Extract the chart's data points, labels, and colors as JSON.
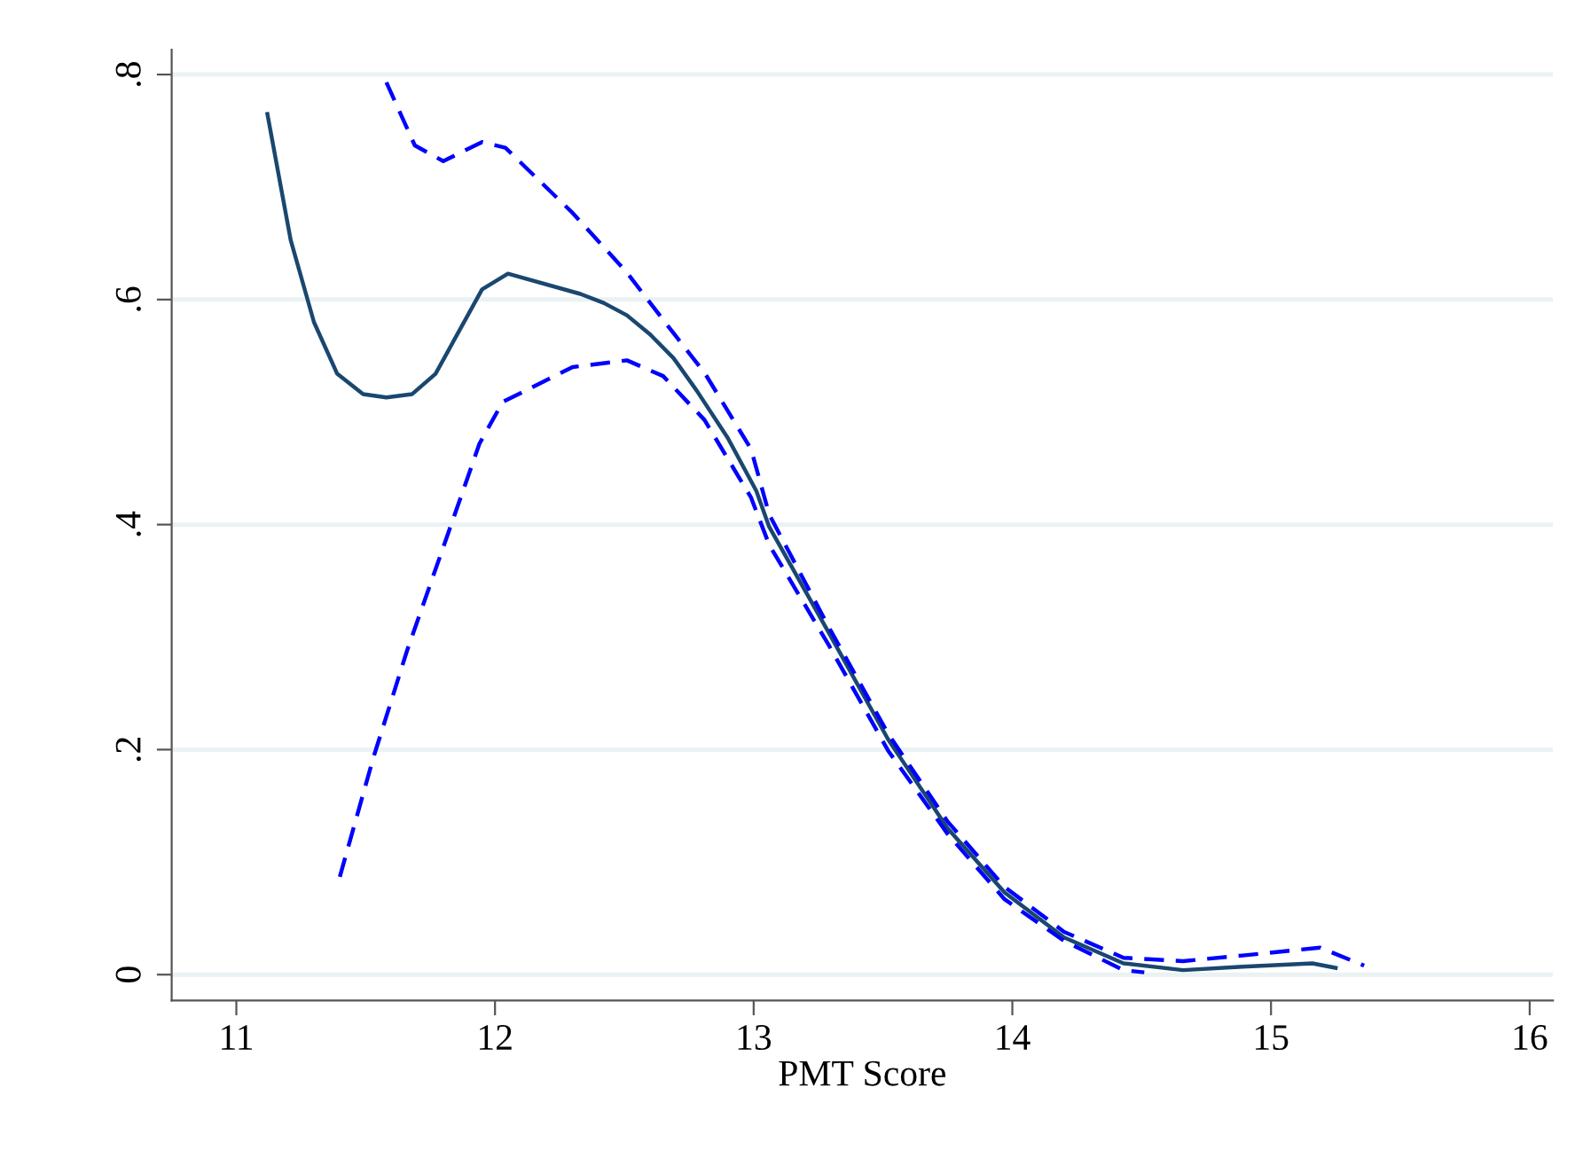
{
  "chart_data": {
    "type": "line",
    "xlabel": "PMT Score",
    "xlim": [
      10.75,
      16.09
    ],
    "ylim": [
      -0.023,
      0.822
    ],
    "xticks": [
      11,
      12,
      13,
      14,
      15,
      16
    ],
    "yticks": [
      0,
      {
        "value": 0.2,
        "label": ".2"
      },
      {
        "value": 0.4,
        "label": ".4"
      },
      {
        "value": 0.6,
        "label": ".6"
      },
      {
        "value": 0.8,
        "label": ".8"
      }
    ],
    "grid": "y",
    "marker": "none",
    "series": [
      {
        "color": "#1a476f",
        "line_style": "solid",
        "x": [
          11.12,
          11.21,
          11.3,
          11.39,
          11.49,
          11.58,
          11.68,
          11.77,
          11.95,
          12.05,
          12.33,
          12.42,
          12.51,
          12.6,
          12.69,
          12.78,
          12.9,
          13.01,
          13.06,
          13.29,
          13.52,
          13.75,
          13.97,
          14.2,
          14.43,
          14.66,
          14.89,
          15.16,
          15.25
        ],
        "values": [
          0.765,
          0.653,
          0.58,
          0.534,
          0.516,
          0.513,
          0.516,
          0.534,
          0.609,
          0.623,
          0.605,
          0.597,
          0.586,
          0.569,
          0.548,
          0.519,
          0.477,
          0.43,
          0.398,
          0.304,
          0.209,
          0.13,
          0.073,
          0.033,
          0.01,
          0.004,
          0.007,
          0.01,
          0.006
        ]
      },
      {
        "color": "#0000ff",
        "line_style": "dashed",
        "x": [
          11.58,
          11.69,
          11.8,
          11.95,
          12.04,
          12.3,
          12.51,
          12.65,
          12.81,
          12.99,
          13.06,
          13.29,
          13.52,
          13.75,
          13.97,
          14.2,
          14.43,
          14.66,
          14.89,
          15.19,
          15.36
        ],
        "values": [
          0.793,
          0.737,
          0.723,
          0.74,
          0.735,
          0.677,
          0.624,
          0.582,
          0.535,
          0.467,
          0.409,
          0.309,
          0.214,
          0.136,
          0.078,
          0.038,
          0.015,
          0.012,
          0.017,
          0.024,
          0.008
        ]
      },
      {
        "color": "#0000ff",
        "line_style": "dashed",
        "x": [
          11.4,
          11.53,
          11.66,
          11.82,
          11.94,
          12.03,
          12.3,
          12.51,
          12.65,
          12.81,
          12.99,
          13.06,
          13.29,
          13.52,
          13.75,
          13.97,
          14.2,
          14.43,
          14.51
        ],
        "values": [
          0.087,
          0.193,
          0.288,
          0.393,
          0.472,
          0.509,
          0.54,
          0.546,
          0.532,
          0.493,
          0.424,
          0.382,
          0.293,
          0.199,
          0.125,
          0.067,
          0.03,
          0.004,
          0.002
        ]
      }
    ]
  }
}
